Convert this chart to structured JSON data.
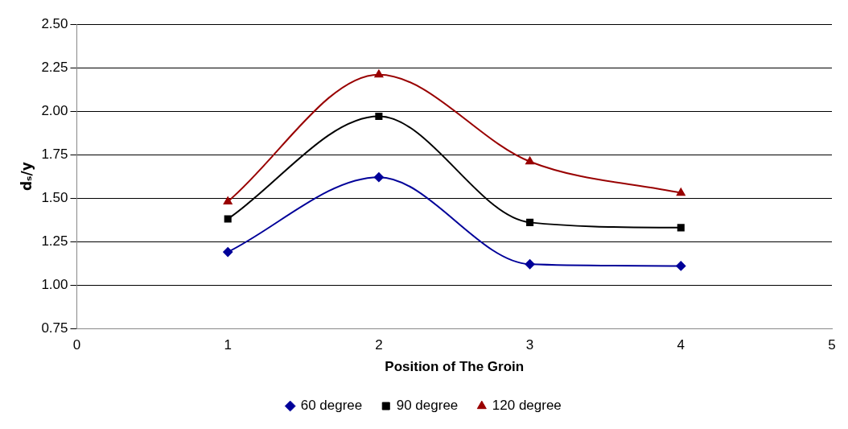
{
  "chart_data": {
    "type": "line",
    "xlabel": "Position of The Groin",
    "ylabel": "dₛ/y",
    "x": [
      1,
      2,
      3,
      4
    ],
    "series": [
      {
        "name": "60 degree",
        "color": "#000099",
        "values": [
          1.19,
          1.62,
          1.12,
          1.11
        ],
        "marker": "diamond"
      },
      {
        "name": "90 degree",
        "color": "#000000",
        "values": [
          1.38,
          1.97,
          1.36,
          1.33
        ],
        "marker": "square"
      },
      {
        "name": "120 degree",
        "color": "#990000",
        "values": [
          1.48,
          2.21,
          1.71,
          1.53
        ],
        "marker": "triangle"
      }
    ],
    "xlim": [
      0,
      5
    ],
    "xticks": [
      0,
      1,
      2,
      3,
      4,
      5
    ],
    "ylim": [
      0.75,
      2.5
    ],
    "yticks": [
      {
        "value": 0.75,
        "label": "0.75"
      },
      {
        "value": 1,
        "label": "1.00"
      },
      {
        "value": 1.25,
        "label": "1.25"
      },
      {
        "value": 1.5,
        "label": "1.50"
      },
      {
        "value": 1.75,
        "label": "1.75"
      },
      {
        "value": 2,
        "label": "2.00"
      },
      {
        "value": 2.25,
        "label": "2.25"
      },
      {
        "value": 2.5,
        "label": "2.50"
      }
    ],
    "grid": "y",
    "legend": "bottom",
    "line_style": "solid"
  }
}
